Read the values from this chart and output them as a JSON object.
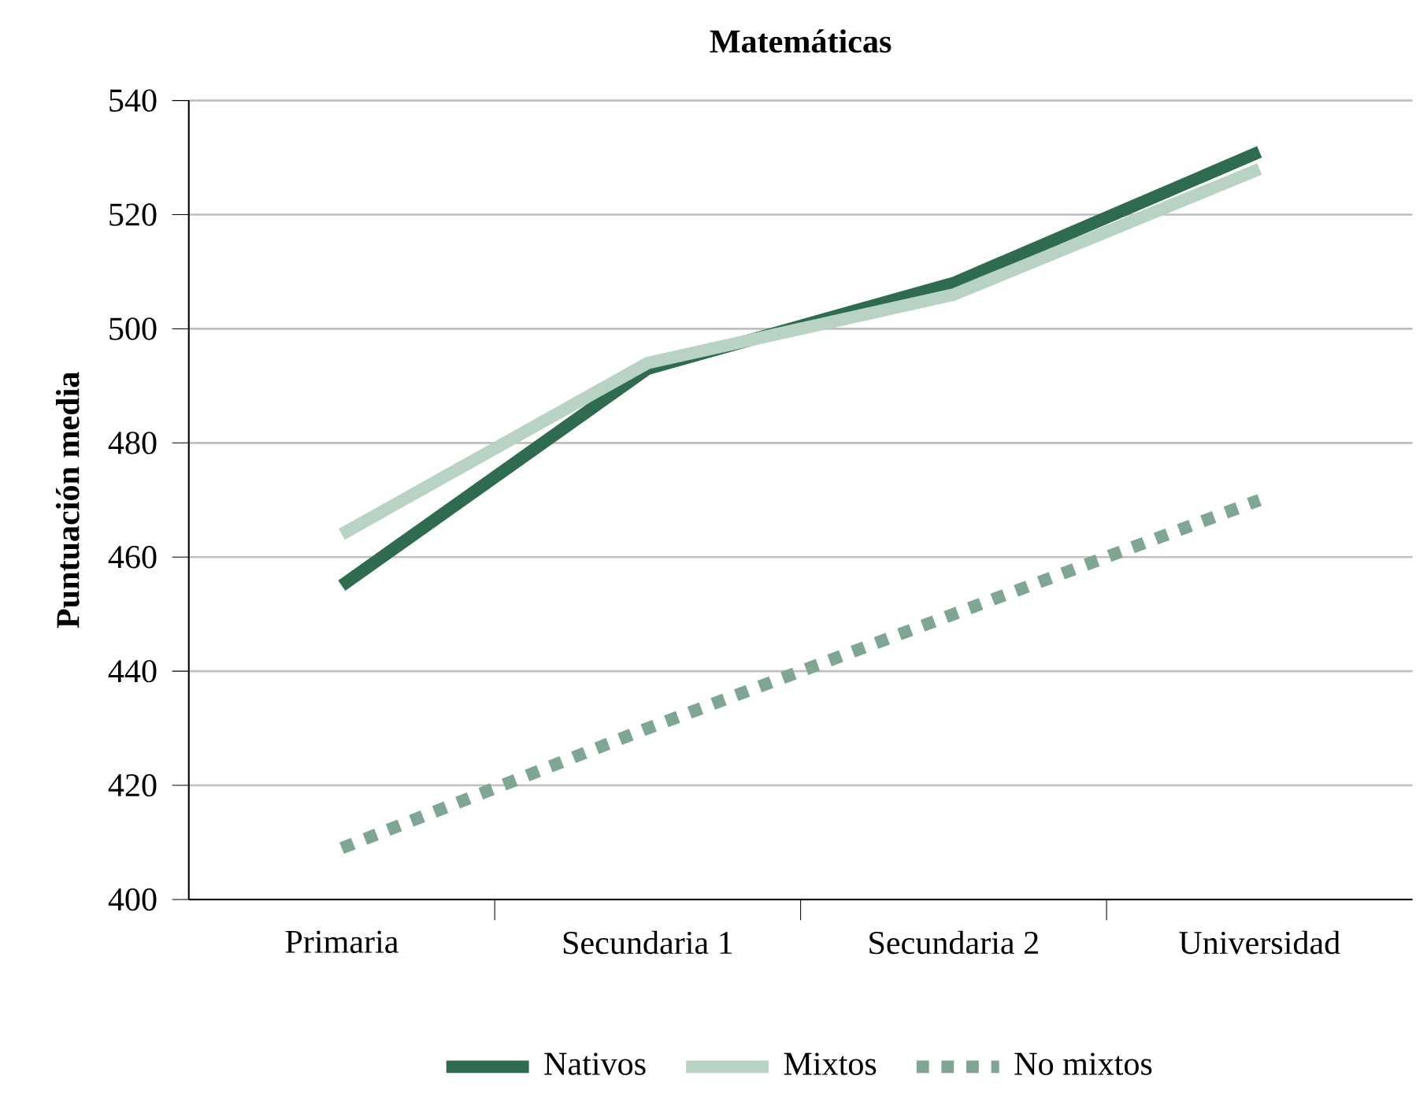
{
  "chart_data": {
    "type": "line",
    "title": "Matemáticas",
    "ylabel": "Puntuación media",
    "categories": [
      "Primaria",
      "Secundaria 1",
      "Secundaria 2",
      "Universidad"
    ],
    "series": [
      {
        "name": "Nativos",
        "color": "#2e6b4f",
        "values": [
          455,
          493,
          508,
          531
        ],
        "line_style": "solid"
      },
      {
        "name": "Mixtos",
        "color": "#b8d3c4",
        "values": [
          464,
          494,
          506,
          528
        ],
        "line_style": "solid"
      },
      {
        "name": "No mixtos",
        "color": "#7fa593",
        "values": [
          409,
          430,
          450,
          470
        ],
        "line_style": "dotted"
      }
    ],
    "ylim": [
      400,
      540
    ],
    "yticks": [
      400,
      420,
      440,
      460,
      480,
      500,
      520,
      540
    ],
    "grid": "y",
    "legend": "bottom",
    "marker": "none"
  }
}
